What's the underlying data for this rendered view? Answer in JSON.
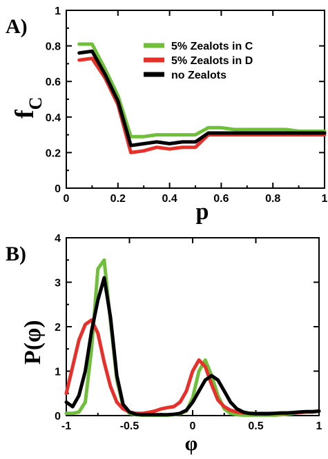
{
  "chart_data": [
    {
      "panel": "A)",
      "type": "line",
      "xlabel": "p",
      "ylabel_main": "f",
      "ylabel_sub": "C",
      "xlim": [
        0,
        1
      ],
      "ylim": [
        0,
        1
      ],
      "xticks": [
        "0",
        "0.2",
        "0.4",
        "0.6",
        "0.8",
        "1"
      ],
      "yticks": [
        "0",
        "0.2",
        "0.4",
        "0.6",
        "0.8",
        "1"
      ],
      "legend_position": "top-right",
      "series": [
        {
          "name": "5% Zealots in C",
          "color": "#6fbf3a",
          "x": [
            0.05,
            0.1,
            0.15,
            0.2,
            0.25,
            0.3,
            0.35,
            0.4,
            0.45,
            0.5,
            0.55,
            0.6,
            0.65,
            0.7,
            0.75,
            0.8,
            0.85,
            0.9,
            0.95,
            1.0
          ],
          "y": [
            0.81,
            0.81,
            0.67,
            0.52,
            0.29,
            0.29,
            0.3,
            0.3,
            0.3,
            0.3,
            0.34,
            0.34,
            0.33,
            0.33,
            0.33,
            0.33,
            0.33,
            0.32,
            0.32,
            0.32
          ]
        },
        {
          "name": "5% Zealots in D",
          "color": "#e8302a",
          "x": [
            0.05,
            0.1,
            0.15,
            0.2,
            0.25,
            0.3,
            0.35,
            0.4,
            0.45,
            0.5,
            0.55,
            0.6,
            0.65,
            0.7,
            0.75,
            0.8,
            0.85,
            0.9,
            0.95,
            1.0
          ],
          "y": [
            0.72,
            0.73,
            0.62,
            0.47,
            0.2,
            0.21,
            0.23,
            0.22,
            0.23,
            0.23,
            0.3,
            0.3,
            0.3,
            0.3,
            0.3,
            0.3,
            0.3,
            0.3,
            0.3,
            0.3
          ]
        },
        {
          "name": "no Zealots",
          "color": "#000000",
          "x": [
            0.05,
            0.1,
            0.15,
            0.2,
            0.25,
            0.3,
            0.35,
            0.4,
            0.45,
            0.5,
            0.55,
            0.6,
            0.65,
            0.7,
            0.75,
            0.8,
            0.85,
            0.9,
            0.95,
            1.0
          ],
          "y": [
            0.76,
            0.77,
            0.64,
            0.49,
            0.24,
            0.25,
            0.26,
            0.25,
            0.26,
            0.26,
            0.31,
            0.31,
            0.31,
            0.31,
            0.31,
            0.31,
            0.31,
            0.31,
            0.31,
            0.31
          ]
        }
      ]
    },
    {
      "panel": "B)",
      "type": "line",
      "xlabel": "φ",
      "ylabel": "P(φ)",
      "xlim": [
        -1,
        1
      ],
      "ylim": [
        0,
        4
      ],
      "xticks": [
        "-1",
        "-0.5",
        "0",
        "0.5",
        "1"
      ],
      "yticks": [
        "0",
        "1",
        "2",
        "3",
        "4"
      ],
      "series": [
        {
          "color": "#6fbf3a",
          "x": [
            -1,
            -0.95,
            -0.9,
            -0.85,
            -0.8,
            -0.75,
            -0.7,
            -0.65,
            -0.6,
            -0.55,
            -0.5,
            -0.45,
            -0.4,
            -0.35,
            -0.3,
            -0.25,
            -0.2,
            -0.15,
            -0.1,
            -0.05,
            0,
            0.05,
            0.1,
            0.15,
            0.2,
            0.25,
            0.3,
            0.35,
            0.4,
            0.45,
            0.5,
            0.55,
            0.6,
            0.65,
            0.7,
            0.75,
            0.8,
            0.85,
            0.9,
            0.95,
            1
          ],
          "y": [
            0.05,
            0.05,
            0.08,
            0.3,
            1.5,
            3.3,
            3.5,
            2.1,
            0.8,
            0.2,
            0.05,
            0.02,
            0.01,
            0.01,
            0.01,
            0.01,
            0.01,
            0.02,
            0.04,
            0.1,
            0.4,
            1.0,
            1.25,
            0.9,
            0.45,
            0.15,
            0.05,
            0.02,
            0.01,
            0.01,
            0.01,
            0.01,
            0.01,
            0.01,
            0.02,
            0.03,
            0.05,
            0.07,
            0.08,
            0.08,
            0.1
          ]
        },
        {
          "color": "#e8302a",
          "x": [
            -1,
            -0.95,
            -0.9,
            -0.85,
            -0.8,
            -0.75,
            -0.7,
            -0.65,
            -0.6,
            -0.55,
            -0.5,
            -0.45,
            -0.4,
            -0.35,
            -0.3,
            -0.25,
            -0.2,
            -0.15,
            -0.1,
            -0.05,
            0,
            0.05,
            0.1,
            0.15,
            0.2,
            0.25,
            0.3,
            0.35,
            0.4,
            0.45,
            0.5,
            0.55,
            0.6,
            0.65,
            0.7,
            0.75,
            0.8,
            0.85,
            0.9,
            0.95,
            1
          ],
          "y": [
            0.5,
            1.1,
            1.7,
            2.05,
            2.15,
            1.85,
            1.2,
            0.65,
            0.3,
            0.15,
            0.08,
            0.05,
            0.05,
            0.07,
            0.1,
            0.15,
            0.18,
            0.2,
            0.3,
            0.55,
            1.0,
            1.25,
            1.1,
            0.7,
            0.35,
            0.2,
            0.12,
            0.08,
            0.06,
            0.05,
            0.05,
            0.05,
            0.05,
            0.05,
            0.05,
            0.05,
            0.06,
            0.07,
            0.08,
            0.08,
            0.1
          ]
        },
        {
          "color": "#000000",
          "x": [
            -1,
            -0.95,
            -0.9,
            -0.85,
            -0.8,
            -0.75,
            -0.7,
            -0.65,
            -0.6,
            -0.55,
            -0.5,
            -0.45,
            -0.4,
            -0.35,
            -0.3,
            -0.25,
            -0.2,
            -0.15,
            -0.1,
            -0.05,
            0,
            0.05,
            0.1,
            0.15,
            0.2,
            0.25,
            0.3,
            0.35,
            0.4,
            0.45,
            0.5,
            0.55,
            0.6,
            0.65,
            0.7,
            0.75,
            0.8,
            0.85,
            0.9,
            0.95,
            1
          ],
          "y": [
            0.3,
            0.2,
            0.45,
            1.0,
            1.9,
            2.6,
            3.1,
            2.2,
            0.9,
            0.25,
            0.08,
            0.03,
            0.02,
            0.02,
            0.02,
            0.02,
            0.02,
            0.03,
            0.05,
            0.12,
            0.3,
            0.55,
            0.8,
            0.9,
            0.8,
            0.55,
            0.3,
            0.15,
            0.08,
            0.05,
            0.04,
            0.04,
            0.04,
            0.05,
            0.06,
            0.06,
            0.07,
            0.08,
            0.09,
            0.09,
            0.1
          ]
        }
      ]
    }
  ]
}
